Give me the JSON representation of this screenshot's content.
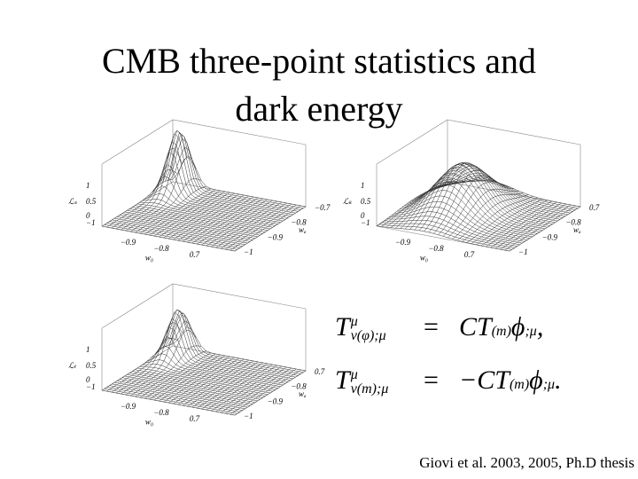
{
  "title": [
    "CMB three-point statistics and",
    "dark energy"
  ],
  "plots": [
    {
      "label": "ℒₛ",
      "z_ticks": [
        "1",
        "0.5",
        "0",
        "−1"
      ],
      "x_label": "w₀",
      "x_ticks": [
        "−0.9",
        "−0.8",
        "0.7"
      ],
      "y_label": "wₐ",
      "y_ticks": [
        "−0.7",
        "−0.8",
        "−0.9",
        "−1"
      ]
    },
    {
      "label": "ℒₖ",
      "z_ticks": [
        "1",
        "0.5",
        "0",
        "−1"
      ],
      "x_label": "w₀",
      "x_ticks": [
        "−0.9",
        "−0.8",
        "0.7"
      ],
      "y_label": "wₐ",
      "y_ticks": [
        "0.7",
        "−0.8",
        "−0.9",
        "−1"
      ]
    },
    {
      "label": "ℒₜ",
      "z_ticks": [
        "1",
        "0.5",
        "0",
        "−1"
      ],
      "x_label": "w₀",
      "x_ticks": [
        "−0.9",
        "−0.8",
        "0.7"
      ],
      "y_label": "wₐ",
      "y_ticks": [
        "0.7",
        "−0.8",
        "−0.9",
        "−1"
      ]
    }
  ],
  "equations": [
    {
      "base": "T",
      "sup": "μ",
      "sub": "ν(φ);μ",
      "rel": "=",
      "rhs": "CT",
      "rhs_sub": "(m)",
      "tail": "ϕ",
      "tail_sub": ";μ",
      "punct": ","
    },
    {
      "base": "T",
      "sup": "μ",
      "sub": "ν(m);μ",
      "rel": "=",
      "rhs": "−CT",
      "rhs_sub": "(m)",
      "tail": "ϕ",
      "tail_sub": ";μ",
      "punct": "."
    }
  ],
  "citation": "Giovi et al. 2003, 2005, Ph.D thesis"
}
